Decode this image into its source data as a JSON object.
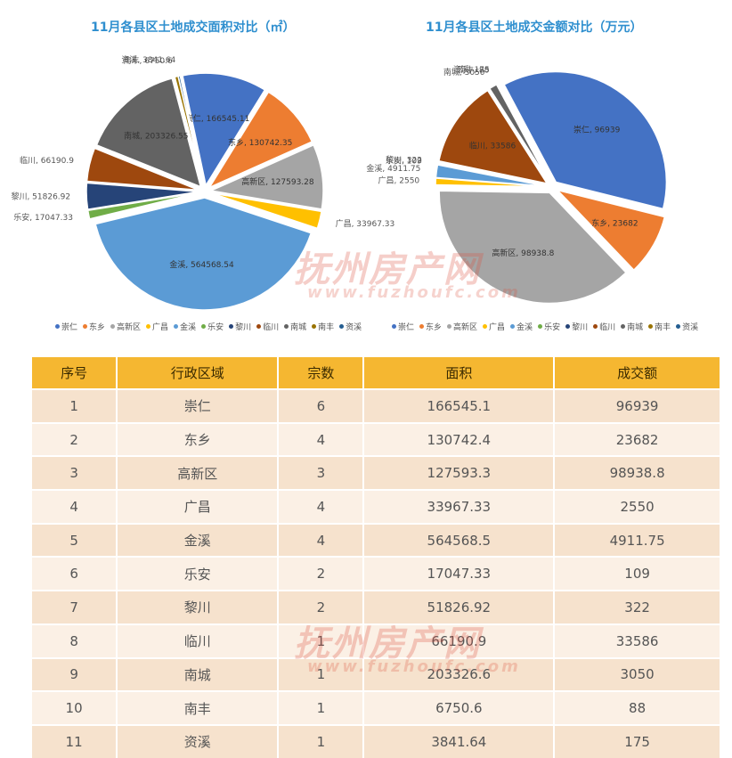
{
  "chart_data": [
    {
      "type": "pie",
      "title": "11月各县区土地成交面积对比（㎡）",
      "categories": [
        "崇仁",
        "东乡",
        "高新区",
        "广昌",
        "金溪",
        "乐安",
        "黎川",
        "临川",
        "南城",
        "南丰",
        "资溪"
      ],
      "values": [
        166545.11,
        130742.35,
        127593.28,
        33967.33,
        564568.54,
        17047.33,
        51826.92,
        66190.9,
        203326.55,
        6750.6,
        3841.64
      ],
      "data_labels": [
        "崇仁, 166545.11",
        "东乡, 130742.35",
        "高新区, 127593.28",
        "广昌, 33967.33",
        "金溪, 564568.54",
        "乐安, 17047.33",
        "黎川, 51826.92",
        "临川, 66190.9",
        "南城, 203326.55",
        "南丰, 6750.6",
        "资溪, 3841.64"
      ],
      "legend_position": "bottom"
    },
    {
      "type": "pie",
      "title": "11月各县区土地成交金额对比（万元）",
      "categories": [
        "崇仁",
        "东乡",
        "高新区",
        "广昌",
        "金溪",
        "乐安",
        "黎川",
        "临川",
        "南城",
        "南丰",
        "资溪"
      ],
      "values": [
        96939,
        23682,
        98938.8,
        2550,
        4911.75,
        109,
        322,
        33586,
        3050,
        88,
        175
      ],
      "data_labels": [
        "崇仁, 96939",
        "东乡, 23682",
        "高新区, 98938.8",
        "广昌, 2550",
        "金溪, 4911.75",
        "乐安, 109",
        "黎川, 322",
        "临川, 33586",
        "南城, 3050",
        "南丰, 88",
        "资溪, 175"
      ],
      "legend_position": "bottom"
    }
  ],
  "colors": [
    "#4472c4",
    "#ed7d31",
    "#a5a5a5",
    "#ffc000",
    "#5b9bd5",
    "#70ad47",
    "#264478",
    "#9e480e",
    "#636363",
    "#997300",
    "#255e91"
  ],
  "table": {
    "headers": [
      "序号",
      "行政区域",
      "宗数",
      "面积",
      "成交额"
    ],
    "rows": [
      [
        "1",
        "崇仁",
        "6",
        "166545.1",
        "96939"
      ],
      [
        "2",
        "东乡",
        "4",
        "130742.4",
        "23682"
      ],
      [
        "3",
        "高新区",
        "3",
        "127593.3",
        "98938.8"
      ],
      [
        "4",
        "广昌",
        "4",
        "33967.33",
        "2550"
      ],
      [
        "5",
        "金溪",
        "4",
        "564568.5",
        "4911.75"
      ],
      [
        "6",
        "乐安",
        "2",
        "17047.33",
        "109"
      ],
      [
        "7",
        "黎川",
        "2",
        "51826.92",
        "322"
      ],
      [
        "8",
        "临川",
        "1",
        "66190.9",
        "33586"
      ],
      [
        "9",
        "南城",
        "1",
        "203326.6",
        "3050"
      ],
      [
        "10",
        "南丰",
        "1",
        "6750.6",
        "88"
      ],
      [
        "11",
        "资溪",
        "1",
        "3841.64",
        "175"
      ]
    ]
  },
  "watermark": {
    "brand": "抚州房产网",
    "url": "www.fuzhoufc.com"
  }
}
